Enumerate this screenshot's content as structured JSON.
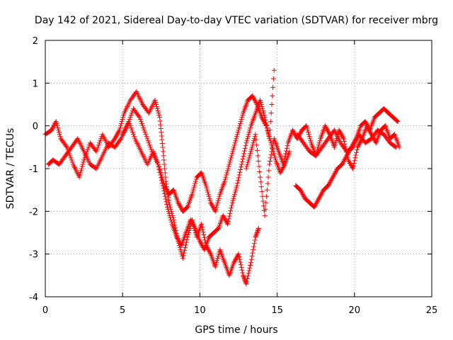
{
  "chart_data": {
    "type": "scatter",
    "title": "Day 142 of 2021, Sidereal Day-to-day VTEC variation (SDTVAR) for receiver mbrg",
    "xlabel": "GPS time / hours",
    "ylabel": "SDTVAR / TECUs",
    "xlim": [
      0,
      25
    ],
    "ylim": [
      -4,
      2
    ],
    "xticks": [
      "0",
      "5",
      "10",
      "15",
      "20",
      "25"
    ],
    "yticks": [
      "-4",
      "-3",
      "-2",
      "-1",
      "0",
      "1",
      "2"
    ],
    "grid": true,
    "marker": "+",
    "color": "#ff0000",
    "series": [
      {
        "name": "track-1",
        "x": [
          0.0,
          0.4,
          0.7,
          1.0,
          1.4,
          1.8,
          2.2,
          2.5,
          2.9,
          3.3,
          3.7,
          4.1,
          4.5,
          4.8,
          5.1,
          5.5,
          5.9,
          6.3,
          6.7,
          7.1,
          7.4,
          7.6,
          7.8,
          8.0,
          8.3,
          8.6,
          8.9,
          9.2,
          9.5,
          9.8,
          10.1,
          10.4,
          10.7,
          11.0,
          11.3,
          11.6,
          11.9,
          12.2,
          12.5,
          12.8,
          13.0,
          13.3,
          13.6,
          13.8
        ],
        "y": [
          -0.2,
          -0.1,
          0.1,
          -0.3,
          -0.5,
          -0.9,
          -1.2,
          -0.8,
          -0.4,
          -0.6,
          -0.2,
          -0.5,
          -0.3,
          -0.1,
          0.3,
          0.6,
          0.8,
          0.5,
          0.3,
          0.6,
          0.2,
          -0.5,
          -1.3,
          -1.8,
          -2.2,
          -2.7,
          -3.1,
          -2.6,
          -2.2,
          -2.6,
          -2.3,
          -2.8,
          -3.0,
          -3.3,
          -2.9,
          -3.2,
          -3.5,
          -3.2,
          -3.0,
          -3.5,
          -3.7,
          -3.2,
          -2.6,
          -2.4
        ]
      },
      {
        "name": "track-2",
        "x": [
          0.2,
          0.5,
          0.9,
          1.3,
          1.7,
          2.1,
          2.5,
          2.9,
          3.3,
          3.7,
          4.1,
          4.5,
          4.9,
          5.3,
          5.7,
          6.1,
          6.5,
          6.9,
          7.3,
          7.6,
          7.9,
          8.2,
          8.5,
          8.8,
          9.1,
          9.4,
          9.7,
          10.0,
          10.3,
          10.6,
          10.9,
          11.2,
          11.5,
          11.8,
          12.1,
          12.4,
          12.7,
          13.0,
          13.3,
          13.6,
          13.9,
          14.2,
          14.5,
          14.8
        ],
        "y": [
          -0.9,
          -0.8,
          -0.9,
          -0.7,
          -0.5,
          -0.3,
          -0.6,
          -0.9,
          -1.0,
          -0.7,
          -0.4,
          -0.5,
          -0.3,
          0.0,
          0.4,
          0.2,
          -0.2,
          -0.6,
          -0.9,
          -1.4,
          -1.9,
          -2.3,
          -2.6,
          -2.8,
          -2.5,
          -2.2,
          -2.4,
          -2.7,
          -2.9,
          -2.6,
          -2.5,
          -2.4,
          -2.1,
          -2.3,
          -1.8,
          -1.4,
          -0.9,
          -0.4,
          0.0,
          0.3,
          0.6,
          0.2,
          -0.3,
          1.3
        ]
      },
      {
        "name": "track-3",
        "x": [
          5.0,
          5.4,
          5.8,
          6.2,
          6.6,
          7.0,
          7.4,
          7.7,
          8.0,
          8.3,
          8.6,
          8.9,
          9.2,
          9.5,
          9.8,
          10.1,
          10.4,
          10.7,
          11.0,
          11.3,
          11.6,
          11.9,
          12.2,
          12.5,
          12.8,
          13.1,
          13.4,
          13.7,
          14.0,
          14.3,
          14.6,
          14.9,
          15.2,
          15.5,
          15.8
        ],
        "y": [
          -0.2,
          0.1,
          -0.3,
          -0.6,
          -0.9,
          -0.6,
          -1.0,
          -1.4,
          -1.6,
          -1.5,
          -1.8,
          -2.0,
          -1.9,
          -1.6,
          -1.2,
          -1.1,
          -1.4,
          -1.8,
          -2.0,
          -1.6,
          -1.3,
          -0.9,
          -0.5,
          -0.1,
          0.3,
          0.6,
          0.7,
          0.5,
          0.2,
          0.0,
          -0.4,
          -0.8,
          -1.1,
          -0.9,
          -0.6
        ]
      },
      {
        "name": "track-4",
        "x": [
          13.0,
          13.3,
          13.6,
          13.9,
          14.2,
          14.5,
          14.8,
          15.1,
          15.4,
          15.7,
          16.0,
          16.3,
          16.6,
          16.9,
          17.2,
          17.5,
          17.8,
          18.1,
          18.4,
          18.7,
          19.0,
          19.3,
          19.6,
          19.9,
          20.2,
          20.5,
          20.8,
          21.1,
          21.4,
          21.7,
          22.0,
          22.3,
          22.6,
          22.9
        ],
        "y": [
          -1.0,
          -0.6,
          -0.2,
          -1.2,
          -2.1,
          -0.9,
          -0.3,
          -0.6,
          -0.9,
          -0.4,
          -0.1,
          -0.3,
          -0.1,
          0.0,
          -0.4,
          -0.7,
          -0.3,
          0.0,
          -0.2,
          -0.5,
          -0.1,
          -0.3,
          -0.8,
          -1.0,
          -0.5,
          -0.3,
          0.0,
          -0.2,
          -0.4,
          -0.1,
          0.0,
          -0.3,
          -0.2,
          -0.5
        ]
      },
      {
        "name": "track-5",
        "x": [
          16.2,
          16.5,
          16.8,
          17.1,
          17.4,
          17.7,
          18.0,
          18.3,
          18.6,
          18.9,
          19.2,
          19.5,
          19.8,
          20.1,
          20.4,
          20.7,
          21.0,
          21.3,
          21.6,
          21.9,
          22.2,
          22.5,
          22.8
        ],
        "y": [
          -1.4,
          -1.5,
          -1.7,
          -1.8,
          -1.9,
          -1.7,
          -1.5,
          -1.4,
          -1.2,
          -1.0,
          -0.9,
          -0.7,
          -0.5,
          -0.3,
          0.0,
          0.1,
          -0.1,
          0.2,
          0.3,
          0.4,
          0.3,
          0.2,
          0.1
        ]
      },
      {
        "name": "track-6",
        "x": [
          16.3,
          16.7,
          17.1,
          17.5,
          17.9,
          18.3,
          18.7,
          19.1,
          19.5,
          19.9,
          20.3,
          20.7,
          21.1,
          21.5,
          21.9,
          22.3,
          22.7
        ],
        "y": [
          -0.2,
          -0.4,
          -0.6,
          -0.7,
          -0.5,
          -0.3,
          -0.1,
          -0.4,
          -0.6,
          -0.5,
          -0.2,
          -0.4,
          -0.3,
          -0.1,
          -0.2,
          -0.4,
          -0.5
        ]
      }
    ]
  }
}
